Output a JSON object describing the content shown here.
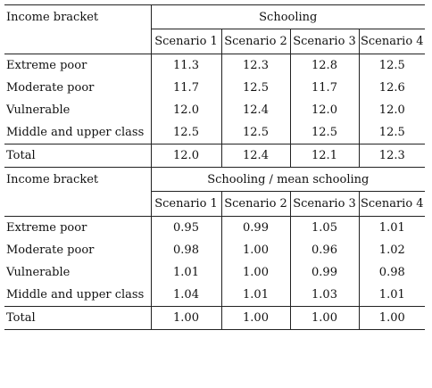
{
  "sections": [
    {
      "row_header": "Income bracket",
      "group_header": "Schooling",
      "scenarios": [
        "Scenario 1",
        "Scenario 2",
        "Scenario 3",
        "Scenario 4"
      ],
      "rows": [
        {
          "label": "Extreme poor",
          "values": [
            "11.3",
            "12.3",
            "12.8",
            "12.5"
          ]
        },
        {
          "label": "Moderate poor",
          "values": [
            "11.7",
            "12.5",
            "11.7",
            "12.6"
          ]
        },
        {
          "label": "Vulnerable",
          "values": [
            "12.0",
            "12.4",
            "12.0",
            "12.0"
          ]
        },
        {
          "label": "Middle and upper class",
          "values": [
            "12.5",
            "12.5",
            "12.5",
            "12.5"
          ]
        }
      ],
      "total": {
        "label": "Total",
        "values": [
          "12.0",
          "12.4",
          "12.1",
          "12.3"
        ]
      }
    },
    {
      "row_header": "Income bracket",
      "group_header": "Schooling / mean schooling",
      "scenarios": [
        "Scenario 1",
        "Scenario 2",
        "Scenario 3",
        "Scenario 4"
      ],
      "rows": [
        {
          "label": "Extreme poor",
          "values": [
            "0.95",
            "0.99",
            "1.05",
            "1.01"
          ]
        },
        {
          "label": "Moderate poor",
          "values": [
            "0.98",
            "1.00",
            "0.96",
            "1.02"
          ]
        },
        {
          "label": "Vulnerable",
          "values": [
            "1.01",
            "1.00",
            "0.99",
            "0.98"
          ]
        },
        {
          "label": "Middle and upper class",
          "values": [
            "1.04",
            "1.01",
            "1.03",
            "1.01"
          ]
        }
      ],
      "total": {
        "label": "Total",
        "values": [
          "1.00",
          "1.00",
          "1.00",
          "1.00"
        ]
      }
    }
  ]
}
